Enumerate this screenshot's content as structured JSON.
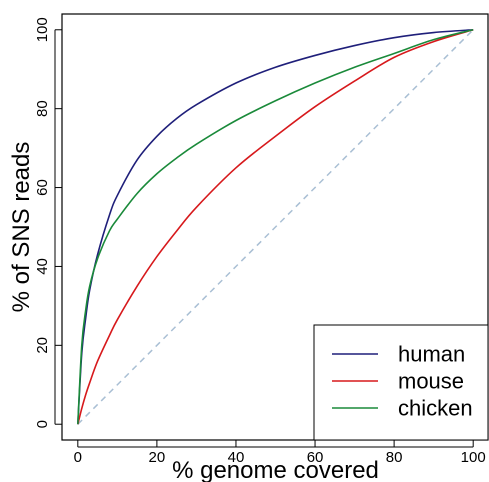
{
  "chart_data": {
    "type": "line",
    "xlabel": "% genome covered",
    "ylabel": "% of SNS reads",
    "xlim": [
      -4,
      104
    ],
    "ylim": [
      -4,
      104
    ],
    "x_ticks": [
      0,
      20,
      40,
      60,
      80,
      100
    ],
    "y_ticks": [
      0,
      20,
      40,
      60,
      80,
      100
    ],
    "x_tick_labels": [
      "0",
      "20",
      "40",
      "60",
      "80",
      "100"
    ],
    "y_tick_labels": [
      "0",
      "20",
      "40",
      "60",
      "80",
      "100"
    ],
    "grid": false,
    "legend_position": "bottom-right",
    "reference_line": {
      "style": "dashed",
      "color": "#a9bfd4",
      "x": [
        0,
        100
      ],
      "y": [
        0,
        100
      ]
    },
    "series": [
      {
        "name": "human",
        "color": "#1f1f7a",
        "x": [
          0,
          1,
          2,
          3,
          5,
          8,
          10,
          15,
          20,
          25,
          30,
          40,
          50,
          60,
          70,
          80,
          90,
          100
        ],
        "y": [
          0,
          18,
          27,
          34,
          43,
          53,
          58,
          67,
          73,
          77.5,
          81,
          86.5,
          90.5,
          93.5,
          96,
          98,
          99.3,
          100
        ]
      },
      {
        "name": "mouse",
        "color": "#d7191c",
        "x": [
          0,
          1,
          2,
          3,
          5,
          8,
          10,
          15,
          20,
          25,
          30,
          40,
          50,
          60,
          70,
          80,
          90,
          100
        ],
        "y": [
          0,
          4,
          7.5,
          10.5,
          16,
          22.5,
          26.5,
          35,
          42.5,
          49,
          55,
          65,
          73,
          80.5,
          87,
          93,
          97,
          100
        ]
      },
      {
        "name": "chicken",
        "color": "#1a8a3a",
        "x": [
          0,
          1,
          2,
          3,
          5,
          8,
          10,
          15,
          20,
          25,
          30,
          40,
          50,
          60,
          70,
          80,
          90,
          100
        ],
        "y": [
          0,
          20,
          29,
          35,
          42,
          49,
          52,
          58.5,
          63.5,
          67.5,
          71,
          77,
          82,
          86.5,
          90.5,
          94,
          97.5,
          100
        ]
      }
    ]
  }
}
